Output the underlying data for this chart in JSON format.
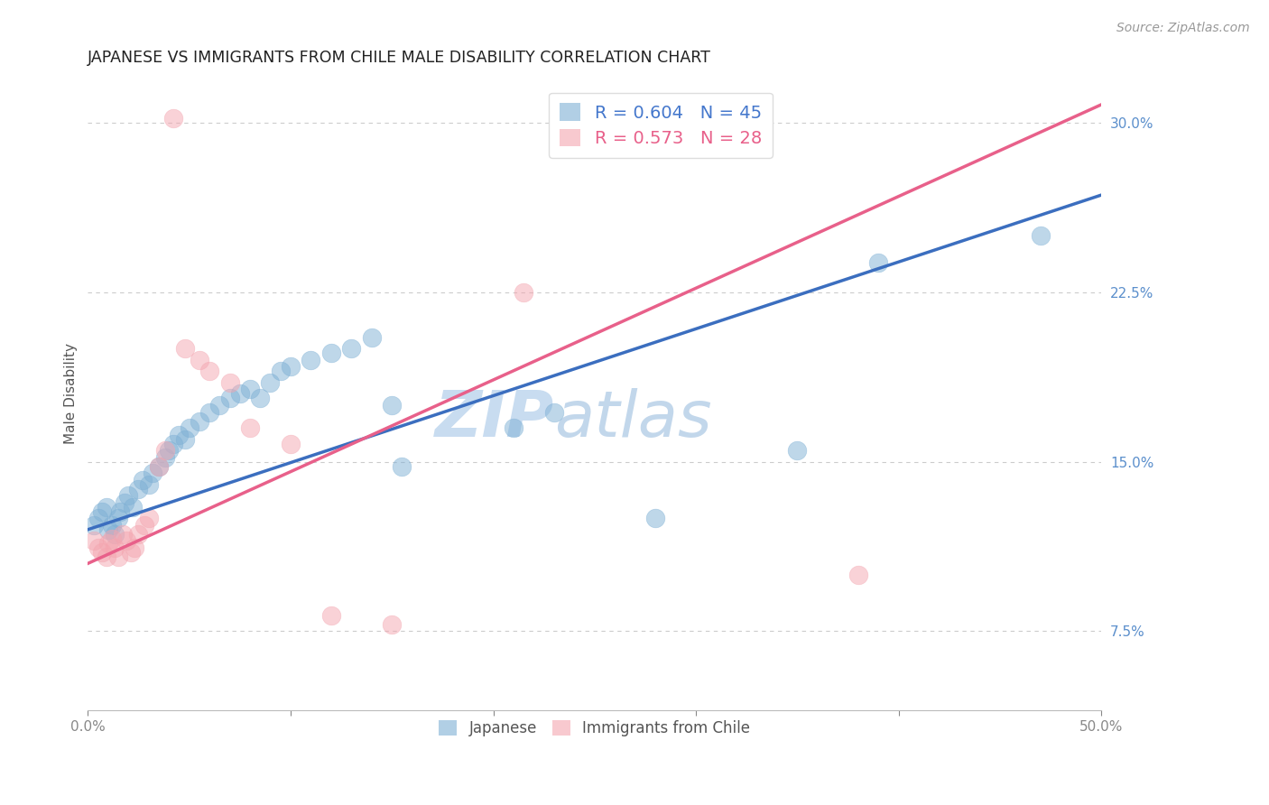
{
  "title": "JAPANESE VS IMMIGRANTS FROM CHILE MALE DISABILITY CORRELATION CHART",
  "source": "Source: ZipAtlas.com",
  "ylabel": "Male Disability",
  "xlim": [
    0.0,
    0.5
  ],
  "ylim": [
    0.04,
    0.32
  ],
  "xticks": [
    0.0,
    0.1,
    0.2,
    0.3,
    0.4,
    0.5
  ],
  "xtick_labels": [
    "0.0%",
    "",
    "",
    "",
    "",
    "50.0%"
  ],
  "ytick_labels_right": [
    "30.0%",
    "22.5%",
    "15.0%",
    "7.5%"
  ],
  "yticks_right": [
    0.3,
    0.225,
    0.15,
    0.075
  ],
  "legend1_label": "R = 0.604   N = 45",
  "legend2_label": "R = 0.573   N = 28",
  "blue_color": "#7EB0D5",
  "pink_color": "#F4A6B0",
  "japanese_points": [
    [
      0.003,
      0.122
    ],
    [
      0.005,
      0.125
    ],
    [
      0.007,
      0.128
    ],
    [
      0.009,
      0.13
    ],
    [
      0.01,
      0.12
    ],
    [
      0.012,
      0.122
    ],
    [
      0.013,
      0.118
    ],
    [
      0.015,
      0.125
    ],
    [
      0.016,
      0.128
    ],
    [
      0.018,
      0.132
    ],
    [
      0.02,
      0.135
    ],
    [
      0.022,
      0.13
    ],
    [
      0.025,
      0.138
    ],
    [
      0.027,
      0.142
    ],
    [
      0.03,
      0.14
    ],
    [
      0.032,
      0.145
    ],
    [
      0.035,
      0.148
    ],
    [
      0.038,
      0.152
    ],
    [
      0.04,
      0.155
    ],
    [
      0.042,
      0.158
    ],
    [
      0.045,
      0.162
    ],
    [
      0.048,
      0.16
    ],
    [
      0.05,
      0.165
    ],
    [
      0.055,
      0.168
    ],
    [
      0.06,
      0.172
    ],
    [
      0.065,
      0.175
    ],
    [
      0.07,
      0.178
    ],
    [
      0.075,
      0.18
    ],
    [
      0.08,
      0.182
    ],
    [
      0.085,
      0.178
    ],
    [
      0.09,
      0.185
    ],
    [
      0.095,
      0.19
    ],
    [
      0.1,
      0.192
    ],
    [
      0.11,
      0.195
    ],
    [
      0.12,
      0.198
    ],
    [
      0.13,
      0.2
    ],
    [
      0.14,
      0.205
    ],
    [
      0.15,
      0.175
    ],
    [
      0.155,
      0.148
    ],
    [
      0.21,
      0.165
    ],
    [
      0.23,
      0.172
    ],
    [
      0.28,
      0.125
    ],
    [
      0.35,
      0.155
    ],
    [
      0.39,
      0.238
    ],
    [
      0.47,
      0.25
    ]
  ],
  "chile_points": [
    [
      0.003,
      0.115
    ],
    [
      0.005,
      0.112
    ],
    [
      0.007,
      0.11
    ],
    [
      0.009,
      0.108
    ],
    [
      0.01,
      0.114
    ],
    [
      0.012,
      0.116
    ],
    [
      0.013,
      0.112
    ],
    [
      0.015,
      0.108
    ],
    [
      0.017,
      0.118
    ],
    [
      0.019,
      0.115
    ],
    [
      0.021,
      0.11
    ],
    [
      0.023,
      0.112
    ],
    [
      0.025,
      0.118
    ],
    [
      0.028,
      0.122
    ],
    [
      0.03,
      0.125
    ],
    [
      0.035,
      0.148
    ],
    [
      0.038,
      0.155
    ],
    [
      0.042,
      0.302
    ],
    [
      0.048,
      0.2
    ],
    [
      0.055,
      0.195
    ],
    [
      0.06,
      0.19
    ],
    [
      0.07,
      0.185
    ],
    [
      0.08,
      0.165
    ],
    [
      0.1,
      0.158
    ],
    [
      0.12,
      0.082
    ],
    [
      0.15,
      0.078
    ],
    [
      0.215,
      0.225
    ],
    [
      0.38,
      0.1
    ]
  ],
  "blue_line": [
    0.0,
    0.5,
    0.12,
    0.268
  ],
  "pink_line": [
    0.0,
    0.5,
    0.105,
    0.308
  ],
  "background_color": "#FFFFFF",
  "grid_color": "#CCCCCC",
  "title_fontsize": 12.5,
  "axis_label_fontsize": 11,
  "tick_fontsize": 11,
  "source_fontsize": 10
}
